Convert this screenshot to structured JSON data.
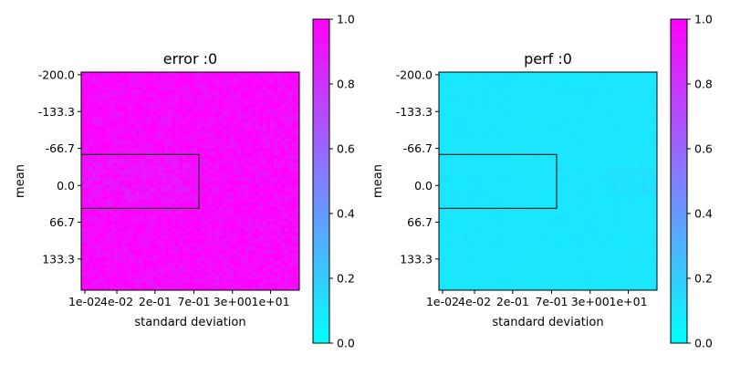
{
  "chart_data": [
    {
      "type": "heatmap",
      "title": "error :0",
      "xlabel": "standard deviation",
      "ylabel": "mean",
      "x_tick_labels": [
        "1e-02",
        "4e-02",
        "2e-01",
        "7e-01",
        "3e+00",
        "1e+01"
      ],
      "y_tick_labels": [
        "-200.0",
        "-133.3",
        "-66.7",
        "0.0",
        "66.7",
        "133.3"
      ],
      "colorbar": {
        "ticks": [
          "0.0",
          "0.2",
          "0.4",
          "0.6",
          "0.8",
          "1.0"
        ],
        "range": [
          0,
          1
        ],
        "colormap": "cool"
      },
      "base_value": 0.97,
      "highlight_box": {
        "x_range": [
          "1e-02",
          "7e-01"
        ],
        "y_range": [
          "-66.7",
          "33.3"
        ]
      }
    },
    {
      "type": "heatmap",
      "title": "perf :0",
      "xlabel": "standard deviation",
      "ylabel": "mean",
      "x_tick_labels": [
        "1e-02",
        "4e-02",
        "2e-01",
        "7e-01",
        "3e+00",
        "1e+01"
      ],
      "y_tick_labels": [
        "-200.0",
        "-133.3",
        "-66.7",
        "0.0",
        "66.7",
        "133.3"
      ],
      "colorbar": {
        "ticks": [
          "0.0",
          "0.2",
          "0.4",
          "0.6",
          "0.8",
          "1.0"
        ],
        "range": [
          0,
          1
        ],
        "colormap": "cool"
      },
      "base_value": 0.1,
      "highlight_box": {
        "x_range": [
          "1e-02",
          "7e-01"
        ],
        "y_range": [
          "-66.7",
          "33.3"
        ]
      }
    }
  ],
  "colors": {
    "colormap_low": "#00ffff",
    "colormap_high": "#ff00ff",
    "box_stroke": "#222222"
  }
}
